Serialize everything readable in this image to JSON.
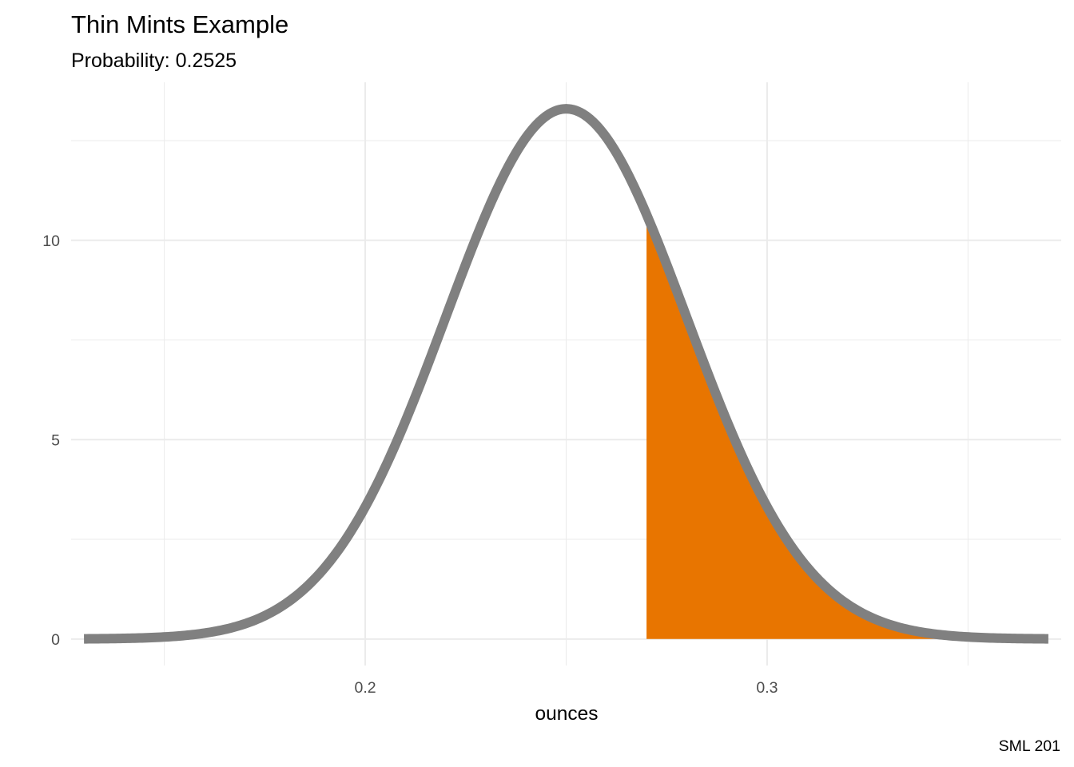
{
  "chart_data": {
    "type": "area",
    "title": "Thin Mints Example",
    "subtitle": "Probability: 0.2525",
    "caption": "SML 201",
    "xlabel": "ounces",
    "ylabel": "",
    "distribution": "normal",
    "mean": 0.25,
    "sd": 0.03,
    "x_range": [
      0.13,
      0.37
    ],
    "shaded_from": 0.27,
    "shaded_to": 0.37,
    "probability": 0.2525,
    "xlim": [
      0.1268,
      0.3732
    ],
    "ylim": [
      -0.665,
      13.963
    ],
    "x_ticks": [
      0.2,
      0.3
    ],
    "x_tick_labels": [
      "0.2",
      "0.3"
    ],
    "x_minor_ticks": [
      0.15,
      0.25,
      0.35
    ],
    "y_ticks": [
      0,
      5,
      10
    ],
    "y_tick_labels": [
      "0",
      "5",
      "10"
    ],
    "y_minor_ticks": [
      2.5,
      7.5,
      12.5
    ],
    "grid": true,
    "curve_color": "#808080",
    "fill_color": "#E87500",
    "grid_color": "#EBEBEB"
  }
}
